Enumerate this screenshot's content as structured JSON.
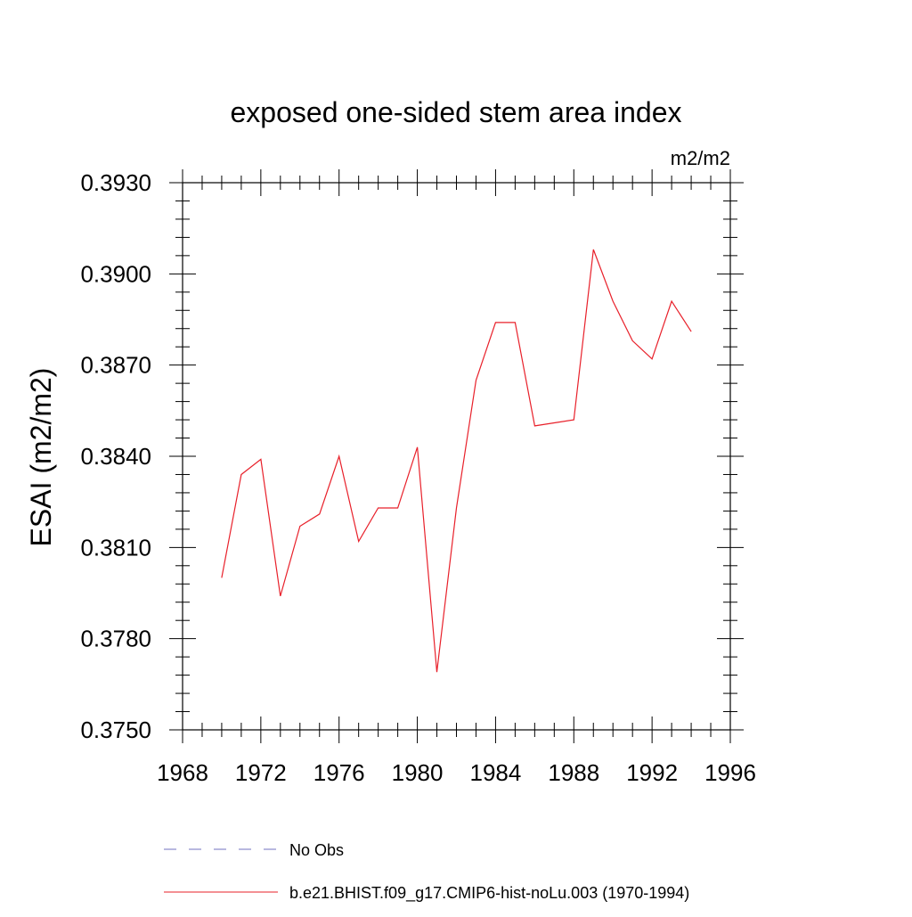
{
  "chart_data": {
    "type": "line",
    "title": "exposed one-sided stem area index",
    "units": "m2/m2",
    "ylabel": "ESAI  (m2/m2)",
    "xlabel": "",
    "xlim": [
      1968,
      1996
    ],
    "ylim": [
      0.375,
      0.393
    ],
    "xticks": [
      1968,
      1972,
      1976,
      1980,
      1984,
      1988,
      1992,
      1996
    ],
    "xtick_labels": [
      "1968",
      "1972",
      "1976",
      "1980",
      "1984",
      "1988",
      "1992",
      "1996"
    ],
    "yticks": [
      0.375,
      0.378,
      0.381,
      0.384,
      0.387,
      0.39,
      0.393
    ],
    "ytick_labels": [
      "0.3750",
      "0.3780",
      "0.3810",
      "0.3840",
      "0.3870",
      "0.3900",
      "0.3930"
    ],
    "grid": false,
    "legend_position": "bottom",
    "series": [
      {
        "name": "No Obs",
        "color": "#7070c0",
        "dash": "dashed",
        "x": [],
        "y": []
      },
      {
        "name": "b.e21.BHIST.f09_g17.CMIP6-hist-noLu.003 (1970-1994)",
        "color": "#e8202a",
        "dash": "solid",
        "x": [
          1970,
          1971,
          1972,
          1973,
          1974,
          1975,
          1976,
          1977,
          1978,
          1979,
          1980,
          1981,
          1982,
          1983,
          1984,
          1985,
          1986,
          1987,
          1988,
          1989,
          1990,
          1991,
          1992,
          1993,
          1994
        ],
        "y": [
          0.38,
          0.3834,
          0.3839,
          0.3794,
          0.3817,
          0.3821,
          0.384,
          0.3812,
          0.3823,
          0.3823,
          0.3843,
          0.3769,
          0.3823,
          0.3865,
          0.3884,
          0.3884,
          0.385,
          0.3851,
          0.3852,
          0.3908,
          0.3891,
          0.3878,
          0.3872,
          0.3891,
          0.3881
        ]
      }
    ]
  }
}
